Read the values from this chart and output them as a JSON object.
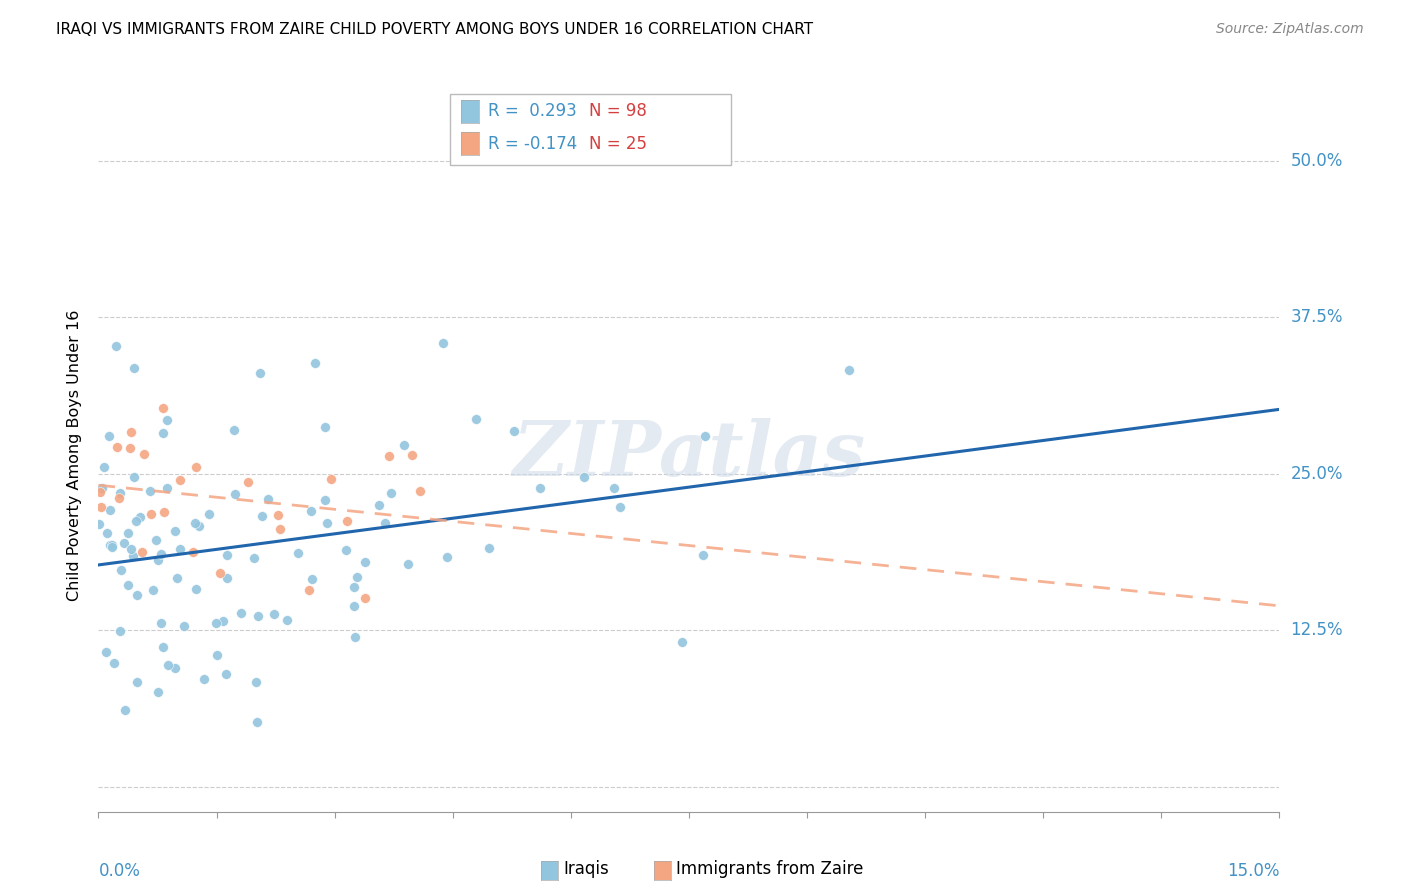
{
  "title": "IRAQI VS IMMIGRANTS FROM ZAIRE CHILD POVERTY AMONG BOYS UNDER 16 CORRELATION CHART",
  "source": "Source: ZipAtlas.com",
  "ylabel": "Child Poverty Among Boys Under 16",
  "yticks": [
    0.0,
    0.125,
    0.25,
    0.375,
    0.5
  ],
  "ytick_labels": [
    "",
    "12.5%",
    "25.0%",
    "37.5%",
    "50.0%"
  ],
  "xlim": [
    0.0,
    0.15
  ],
  "ylim": [
    -0.02,
    0.55
  ],
  "blue_color": "#92c5de",
  "blue_line": "#2166ac",
  "pink_color": "#f4a582",
  "pink_line": "#f4a582",
  "label_color": "#4292c6",
  "r1": 0.293,
  "n1": 98,
  "r2": -0.174,
  "n2": 25,
  "watermark": "ZIPatlas",
  "seed": 42
}
